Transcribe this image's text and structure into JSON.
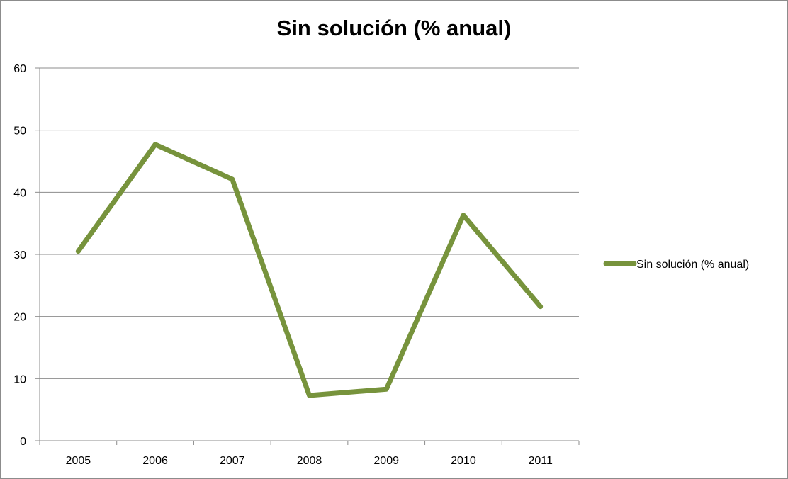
{
  "chart_data": {
    "type": "line",
    "title": "Sin solución (% anual)",
    "xlabel": "",
    "ylabel": "",
    "categories": [
      "2005",
      "2006",
      "2007",
      "2008",
      "2009",
      "2010",
      "2011"
    ],
    "series": [
      {
        "name": "Sin solución (% anual)",
        "values": [
          30.5,
          47.7,
          42.1,
          7.3,
          8.3,
          36.3,
          21.6
        ],
        "color": "#77933c"
      }
    ],
    "ylim": [
      0,
      60
    ],
    "yticks": [
      "0",
      "10",
      "20",
      "30",
      "40",
      "50",
      "60"
    ],
    "grid": true,
    "legend": "right"
  }
}
